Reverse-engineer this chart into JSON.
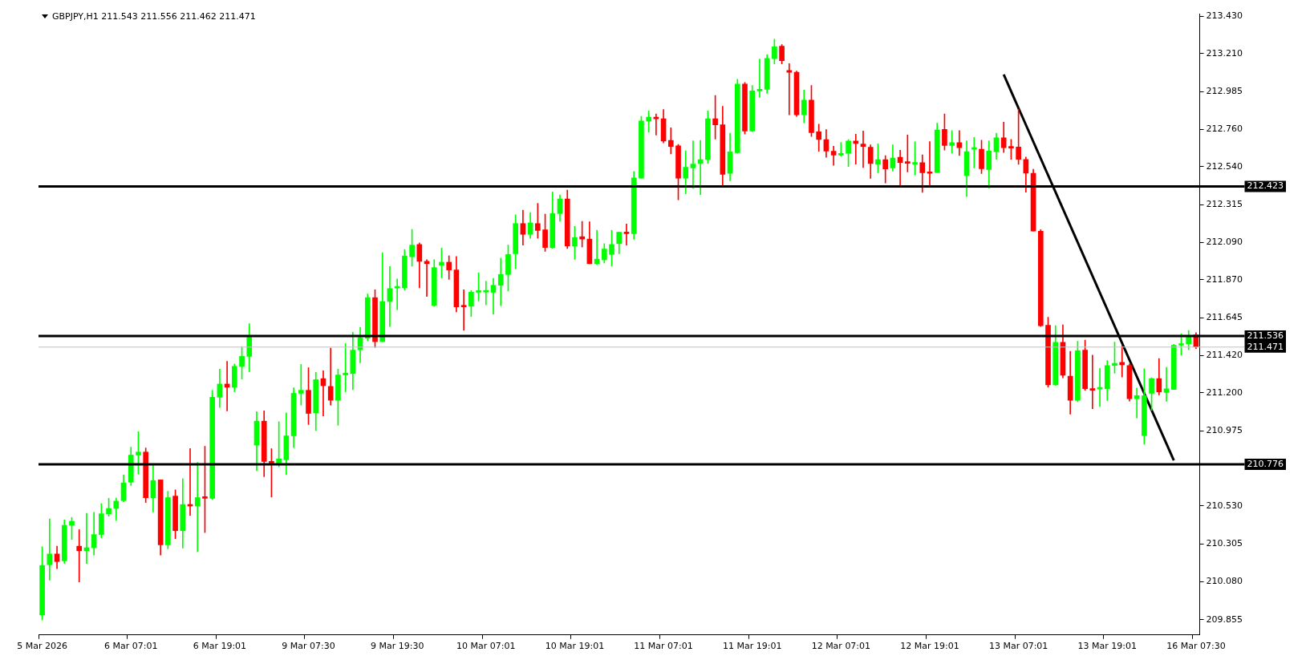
{
  "chart_data": {
    "type": "candlestick",
    "title": "GBPJPY,H1  211.543 211.556 211.462 211.471",
    "categories": [
      "5 Mar 2026",
      null,
      null,
      null,
      null,
      null,
      null,
      null,
      null,
      null,
      null,
      null,
      "6 Mar 07:01",
      null,
      null,
      null,
      null,
      null,
      null,
      null,
      null,
      null,
      null,
      null,
      "6 Mar 19:01",
      null,
      null,
      null,
      null,
      null,
      null,
      null,
      null,
      null,
      null,
      null,
      "9 Mar 07:30",
      null,
      null,
      null,
      null,
      null,
      null,
      null,
      null,
      null,
      null,
      null,
      "9 Mar 19:30",
      null,
      null,
      null,
      null,
      null,
      null,
      null,
      null,
      null,
      null,
      null,
      "10 Mar 07:01",
      null,
      null,
      null,
      null,
      null,
      null,
      null,
      null,
      null,
      null,
      null,
      "10 Mar 19:01",
      null,
      null,
      null,
      null,
      null,
      null,
      null,
      null,
      null,
      null,
      null,
      "11 Mar 07:01",
      null,
      null,
      null,
      null,
      null,
      null,
      null,
      null,
      null,
      null,
      null,
      "11 Mar 19:01",
      null,
      null,
      null,
      null,
      null,
      null,
      null,
      null,
      null,
      null,
      null,
      "12 Mar 07:01",
      null,
      null,
      null,
      null,
      null,
      null,
      null,
      null,
      null,
      null,
      null,
      "12 Mar 19:01",
      null,
      null,
      null,
      null,
      null,
      null,
      null,
      null,
      null,
      null,
      null,
      "13 Mar 07:01",
      null,
      null,
      null,
      null,
      null,
      null,
      null,
      null,
      null,
      null,
      null,
      "13 Mar 19:01",
      null,
      null,
      null,
      null,
      null,
      null,
      null,
      null,
      null,
      null,
      null,
      "16 Mar 07:30"
    ],
    "ohlc": [
      [
        209.884,
        210.288,
        209.854,
        210.177
      ],
      [
        210.181,
        210.453,
        210.09,
        210.245
      ],
      [
        210.245,
        210.291,
        210.158,
        210.2
      ],
      [
        210.204,
        210.447,
        210.189,
        210.415
      ],
      [
        210.415,
        210.462,
        210.331,
        210.439
      ],
      [
        210.291,
        210.389,
        210.079,
        210.264
      ],
      [
        210.264,
        210.486,
        210.189,
        210.282
      ],
      [
        210.282,
        210.492,
        210.239,
        210.36
      ],
      [
        210.36,
        210.544,
        210.341,
        210.483
      ],
      [
        210.483,
        210.575,
        210.468,
        210.515
      ],
      [
        210.515,
        210.576,
        210.444,
        210.558
      ],
      [
        210.561,
        210.713,
        210.555,
        210.666
      ],
      [
        210.671,
        210.878,
        210.651,
        210.831
      ],
      [
        210.831,
        210.97,
        210.719,
        210.849
      ],
      [
        210.849,
        210.873,
        210.55,
        210.578
      ],
      [
        210.578,
        210.77,
        210.494,
        210.68
      ],
      [
        210.684,
        210.684,
        210.239,
        210.299
      ],
      [
        210.299,
        210.616,
        210.276,
        210.579
      ],
      [
        210.588,
        210.625,
        210.335,
        210.383
      ],
      [
        210.383,
        210.691,
        210.28,
        210.538
      ],
      [
        210.538,
        210.87,
        210.474,
        210.529
      ],
      [
        210.529,
        210.787,
        210.258,
        210.579
      ],
      [
        210.584,
        210.883,
        210.372,
        210.575
      ],
      [
        210.575,
        211.215,
        210.569,
        211.174
      ],
      [
        211.174,
        211.34,
        211.113,
        211.252
      ],
      [
        211.252,
        211.386,
        211.093,
        211.233
      ],
      [
        211.233,
        211.371,
        211.206,
        211.357
      ],
      [
        211.357,
        211.474,
        211.282,
        211.416
      ],
      [
        211.416,
        211.61,
        211.325,
        211.529
      ],
      [
        210.89,
        211.088,
        210.738,
        211.032
      ],
      [
        211.032,
        211.093,
        210.703,
        210.793
      ],
      [
        210.794,
        210.869,
        210.582,
        210.776
      ],
      [
        210.776,
        211.029,
        210.761,
        210.808
      ],
      [
        210.803,
        211.081,
        210.715,
        210.945
      ],
      [
        210.945,
        211.23,
        210.875,
        211.197
      ],
      [
        211.197,
        211.368,
        211.127,
        211.215
      ],
      [
        211.215,
        211.349,
        211.012,
        211.078
      ],
      [
        211.081,
        211.322,
        210.976,
        211.278
      ],
      [
        211.284,
        211.331,
        211.063,
        211.242
      ],
      [
        211.238,
        211.465,
        211.127,
        211.156
      ],
      [
        211.156,
        211.34,
        211.008,
        211.306
      ],
      [
        211.306,
        211.493,
        211.206,
        211.317
      ],
      [
        211.314,
        211.559,
        211.218,
        211.453
      ],
      [
        211.455,
        211.587,
        211.378,
        211.527
      ],
      [
        211.523,
        211.786,
        211.508,
        211.764
      ],
      [
        211.764,
        211.811,
        211.469,
        211.503
      ],
      [
        211.503,
        212.03,
        211.503,
        211.741
      ],
      [
        211.741,
        211.948,
        211.593,
        211.818
      ],
      [
        211.821,
        211.875,
        211.693,
        211.823
      ],
      [
        211.823,
        212.049,
        211.808,
        212.011
      ],
      [
        212.006,
        212.168,
        211.95,
        212.075
      ],
      [
        212.079,
        212.088,
        211.822,
        211.979
      ],
      [
        211.979,
        211.989,
        211.771,
        211.965
      ],
      [
        211.718,
        211.989,
        211.712,
        211.942
      ],
      [
        211.956,
        212.058,
        211.881,
        211.974
      ],
      [
        211.974,
        212.012,
        211.872,
        211.928
      ],
      [
        211.928,
        212.008,
        211.68,
        211.709
      ],
      [
        211.713,
        211.811,
        211.57,
        211.709
      ],
      [
        211.713,
        211.806,
        211.652,
        211.796
      ],
      [
        211.796,
        211.911,
        211.744,
        211.799
      ],
      [
        211.797,
        211.861,
        211.721,
        211.799
      ],
      [
        211.796,
        211.878,
        211.666,
        211.837
      ],
      [
        211.837,
        211.998,
        211.716,
        211.901
      ],
      [
        211.901,
        212.076,
        211.803,
        212.02
      ],
      [
        212.024,
        212.255,
        211.936,
        212.203
      ],
      [
        212.203,
        212.282,
        212.075,
        212.139
      ],
      [
        212.139,
        212.268,
        212.116,
        212.207
      ],
      [
        212.203,
        212.323,
        212.116,
        212.162
      ],
      [
        212.166,
        212.259,
        212.038,
        212.061
      ],
      [
        212.061,
        212.39,
        212.056,
        212.262
      ],
      [
        212.262,
        212.373,
        212.216,
        212.349
      ],
      [
        212.349,
        212.401,
        212.055,
        212.07
      ],
      [
        212.07,
        212.186,
        211.991,
        212.12
      ],
      [
        212.125,
        212.216,
        212.064,
        212.111
      ],
      [
        212.111,
        212.213,
        211.965,
        211.965
      ],
      [
        211.965,
        212.163,
        211.959,
        211.992
      ],
      [
        211.988,
        212.084,
        211.969,
        212.052
      ],
      [
        212.02,
        212.163,
        211.95,
        212.079
      ],
      [
        212.084,
        212.152,
        212.024,
        212.152
      ],
      [
        212.152,
        212.2,
        212.075,
        212.143
      ],
      [
        212.143,
        212.511,
        212.11,
        212.473
      ],
      [
        212.472,
        212.838,
        212.472,
        212.811
      ],
      [
        212.811,
        212.87,
        212.745,
        212.834
      ],
      [
        212.834,
        212.853,
        212.727,
        212.824
      ],
      [
        212.824,
        212.879,
        212.681,
        212.692
      ],
      [
        212.696,
        212.771,
        212.616,
        212.66
      ],
      [
        212.664,
        212.672,
        212.343,
        212.472
      ],
      [
        212.472,
        212.634,
        212.379,
        212.536
      ],
      [
        212.532,
        212.693,
        212.411,
        212.555
      ],
      [
        212.559,
        212.696,
        212.375,
        212.582
      ],
      [
        212.582,
        212.87,
        212.559,
        212.824
      ],
      [
        212.824,
        212.962,
        212.704,
        212.788
      ],
      [
        212.788,
        212.898,
        212.43,
        212.495
      ],
      [
        212.5,
        212.738,
        212.457,
        212.628
      ],
      [
        212.623,
        213.058,
        212.619,
        213.03
      ],
      [
        213.03,
        213.039,
        212.733,
        212.751
      ],
      [
        212.751,
        213.021,
        212.747,
        212.989
      ],
      [
        212.989,
        213.178,
        212.951,
        212.998
      ],
      [
        212.998,
        213.204,
        212.975,
        213.181
      ],
      [
        213.181,
        213.296,
        213.149,
        213.25
      ],
      [
        213.254,
        213.264,
        213.149,
        213.168
      ],
      [
        213.11,
        213.151,
        212.847,
        213.099
      ],
      [
        213.099,
        213.107,
        212.838,
        212.847
      ],
      [
        212.847,
        212.994,
        212.8,
        212.934
      ],
      [
        212.934,
        213.021,
        212.719,
        212.742
      ],
      [
        212.747,
        212.792,
        212.631,
        212.701
      ],
      [
        212.701,
        212.76,
        212.596,
        212.632
      ],
      [
        212.632,
        212.661,
        212.548,
        212.609
      ],
      [
        212.609,
        212.684,
        212.603,
        212.619
      ],
      [
        212.619,
        212.701,
        212.541,
        212.692
      ],
      [
        212.692,
        212.733,
        212.555,
        212.678
      ],
      [
        212.674,
        212.751,
        212.535,
        212.66
      ],
      [
        212.655,
        212.669,
        212.471,
        212.559
      ],
      [
        212.555,
        212.675,
        212.504,
        212.582
      ],
      [
        212.582,
        212.605,
        212.443,
        212.527
      ],
      [
        212.532,
        212.669,
        212.513,
        212.591
      ],
      [
        212.596,
        212.637,
        212.417,
        212.564
      ],
      [
        212.564,
        212.728,
        212.509,
        212.56
      ],
      [
        212.555,
        212.687,
        212.491,
        212.564
      ],
      [
        212.564,
        212.61,
        212.388,
        212.504
      ],
      [
        212.505,
        212.688,
        212.432,
        212.5
      ],
      [
        212.505,
        212.798,
        212.505,
        212.757
      ],
      [
        212.761,
        212.853,
        212.638,
        212.665
      ],
      [
        212.665,
        212.754,
        212.62,
        212.682
      ],
      [
        212.682,
        212.754,
        212.606,
        212.652
      ],
      [
        212.487,
        212.693,
        212.362,
        212.629
      ],
      [
        212.643,
        212.713,
        212.533,
        212.652
      ],
      [
        212.643,
        212.697,
        212.499,
        212.528
      ],
      [
        212.523,
        212.693,
        212.414,
        212.633
      ],
      [
        212.629,
        212.738,
        212.583,
        212.711
      ],
      [
        212.711,
        212.804,
        212.624,
        212.652
      ],
      [
        212.652,
        212.702,
        212.583,
        212.65
      ],
      [
        212.656,
        212.88,
        212.554,
        212.583
      ],
      [
        212.583,
        212.597,
        212.389,
        212.501
      ],
      [
        212.501,
        212.524,
        212.158,
        212.158
      ],
      [
        212.158,
        212.167,
        211.593,
        211.598
      ],
      [
        211.6,
        211.648,
        211.234,
        211.247
      ],
      [
        211.247,
        211.598,
        211.243,
        211.499
      ],
      [
        211.499,
        211.603,
        211.289,
        211.304
      ],
      [
        211.298,
        211.446,
        211.074,
        211.156
      ],
      [
        211.156,
        211.505,
        211.147,
        211.449
      ],
      [
        211.453,
        211.513,
        211.215,
        211.224
      ],
      [
        211.224,
        211.423,
        211.106,
        211.215
      ],
      [
        211.222,
        211.345,
        211.119,
        211.224
      ],
      [
        211.224,
        211.391,
        211.154,
        211.362
      ],
      [
        211.362,
        211.5,
        211.316,
        211.375
      ],
      [
        211.38,
        211.478,
        211.293,
        211.366
      ],
      [
        211.362,
        211.371,
        211.151,
        211.165
      ],
      [
        211.165,
        211.229,
        211.051,
        211.183
      ],
      [
        210.946,
        211.343,
        210.895,
        211.183
      ],
      [
        211.197,
        211.289,
        211.096,
        211.284
      ],
      [
        211.284,
        211.403,
        211.188,
        211.206
      ],
      [
        211.202,
        211.351,
        211.15,
        211.224
      ],
      [
        211.22,
        211.487,
        211.22,
        211.481
      ],
      [
        211.482,
        211.551,
        211.423,
        211.491
      ],
      [
        211.491,
        211.569,
        211.455,
        211.532
      ],
      [
        211.543,
        211.556,
        211.462,
        211.471
      ]
    ],
    "colors": [
      "#00ff00",
      "#00ff00",
      "#ff0000",
      "#00ff00",
      "#00ff00",
      "#ff0000",
      "#00ff00",
      "#00ff00",
      "#00ff00",
      "#00ff00",
      "#00ff00",
      "#00ff00",
      "#00ff00",
      "#00ff00",
      "#ff0000",
      "#00ff00",
      "#ff0000",
      "#00ff00",
      "#ff0000",
      "#00ff00",
      "#ff0000",
      "#00ff00",
      "#ff0000",
      "#00ff00",
      "#00ff00",
      "#ff0000",
      "#00ff00",
      "#00ff00",
      "#00ff00",
      "#00ff00",
      "#ff0000",
      "#ff0000",
      "#00ff00",
      "#00ff00",
      "#00ff00",
      "#00ff00",
      "#ff0000",
      "#00ff00",
      "#ff0000",
      "#ff0000",
      "#00ff00",
      "#00ff00",
      "#00ff00",
      "#00ff00",
      "#00ff00",
      "#ff0000",
      "#00ff00",
      "#00ff00",
      "#00ff00",
      "#00ff00",
      "#00ff00",
      "#ff0000",
      "#ff0000",
      "#00ff00",
      "#00ff00",
      "#ff0000",
      "#ff0000",
      "#ff0000",
      "#00ff00",
      "#00ff00",
      "#00ff00",
      "#00ff00",
      "#00ff00",
      "#00ff00",
      "#00ff00",
      "#ff0000",
      "#00ff00",
      "#ff0000",
      "#ff0000",
      "#00ff00",
      "#00ff00",
      "#ff0000",
      "#00ff00",
      "#ff0000",
      "#ff0000",
      "#00ff00",
      "#00ff00",
      "#00ff00",
      "#00ff00",
      "#ff0000",
      "#00ff00",
      "#00ff00",
      "#00ff00",
      "#ff0000",
      "#ff0000",
      "#ff0000",
      "#ff0000",
      "#00ff00",
      "#00ff00",
      "#00ff00",
      "#00ff00",
      "#ff0000",
      "#ff0000",
      "#00ff00",
      "#00ff00",
      "#ff0000",
      "#00ff00",
      "#00ff00",
      "#00ff00",
      "#00ff00",
      "#ff0000",
      "#ff0000",
      "#ff0000",
      "#00ff00",
      "#ff0000",
      "#ff0000",
      "#ff0000",
      "#ff0000",
      "#00ff00",
      "#00ff00",
      "#ff0000",
      "#ff0000",
      "#ff0000",
      "#00ff00",
      "#ff0000",
      "#00ff00",
      "#ff0000",
      "#ff0000",
      "#00ff00",
      "#ff0000",
      "#ff0000",
      "#00ff00",
      "#ff0000",
      "#00ff00",
      "#ff0000",
      "#00ff00",
      "#00ff00",
      "#ff0000",
      "#00ff00",
      "#00ff00",
      "#ff0000",
      "#ff0000",
      "#ff0000",
      "#ff0000",
      "#ff0000",
      "#ff0000",
      "#ff0000",
      "#00ff00",
      "#ff0000",
      "#ff0000",
      "#00ff00",
      "#ff0000",
      "#ff0000",
      "#00ff00",
      "#00ff00",
      "#00ff00",
      "#ff0000",
      "#ff0000",
      "#00ff00",
      "#00ff00",
      "#00ff00",
      "#ff0000",
      "#00ff00",
      "#00ff00",
      "#00ff00",
      "#00ff00",
      "#ff0000"
    ],
    "series": [
      {
        "type": "line",
        "color": "#000000",
        "values": [
          null,
          null,
          null,
          null,
          null,
          null,
          null,
          null,
          null,
          null,
          null,
          null,
          null,
          null,
          null,
          null,
          null,
          null,
          null,
          null,
          null,
          null,
          null,
          null,
          null,
          null,
          null,
          null,
          null,
          null,
          null,
          null,
          null,
          null,
          null,
          null,
          null,
          null,
          null,
          null,
          null,
          null,
          null,
          null,
          null,
          null,
          null,
          null,
          null,
          null,
          null,
          null,
          null,
          null,
          null,
          null,
          null,
          null,
          null,
          null,
          null,
          null,
          null,
          null,
          null,
          null,
          null,
          null,
          null,
          null,
          null,
          null,
          null,
          null,
          null,
          null,
          null,
          null,
          null,
          null,
          null,
          null,
          null,
          null,
          null,
          null,
          null,
          null,
          null,
          null,
          null,
          null,
          null,
          null,
          null,
          null,
          null,
          null,
          null,
          null,
          null,
          null,
          null,
          null,
          null,
          null,
          null,
          null,
          null,
          null,
          null,
          null,
          null,
          null,
          null,
          null,
          null,
          null,
          null,
          null,
          null,
          null,
          null,
          null,
          null,
          null,
          null,
          null,
          null,
          null,
          213.086,
          null,
          null,
          null,
          null,
          null,
          null,
          null,
          null,
          null,
          null,
          null,
          null,
          null,
          null,
          null,
          null,
          null,
          null,
          null,
          null,
          null,
          null,
          210.799,
          null,
          null,
          null
        ]
      }
    ],
    "ylim": [
      209.765,
      213.444
    ],
    "yticks": [
      {
        "value": 209.855,
        "label": "209.855"
      },
      {
        "value": 210.08,
        "label": "210.080"
      },
      {
        "value": 210.305,
        "label": "210.305"
      },
      {
        "value": 210.53,
        "label": "210.530"
      },
      {
        "value": 210.975,
        "label": "210.975"
      },
      {
        "value": 211.2,
        "label": "211.200"
      },
      {
        "value": 211.42,
        "label": "211.420"
      },
      {
        "value": 211.645,
        "label": "211.645"
      },
      {
        "value": 211.87,
        "label": "211.870"
      },
      {
        "value": 212.09,
        "label": "212.090"
      },
      {
        "value": 212.315,
        "label": "212.315"
      },
      {
        "value": 212.54,
        "label": "212.540"
      },
      {
        "value": 212.76,
        "label": "212.760"
      },
      {
        "value": 212.985,
        "label": "212.985"
      },
      {
        "value": 213.21,
        "label": "213.210"
      },
      {
        "value": 213.43,
        "label": "213.430"
      }
    ],
    "ref_lines": [
      {
        "axis": "y",
        "value": 212.423,
        "label": "212.423",
        "color": "#000000"
      },
      {
        "axis": "y",
        "value": 211.536,
        "label": "211.536",
        "color": "#000000"
      },
      {
        "axis": "y",
        "value": 210.776,
        "label": "210.776",
        "color": "#000000"
      },
      {
        "axis": "y",
        "value": 211.471,
        "label": "211.471",
        "color": "#c0c0c0"
      }
    ],
    "legend": false
  }
}
